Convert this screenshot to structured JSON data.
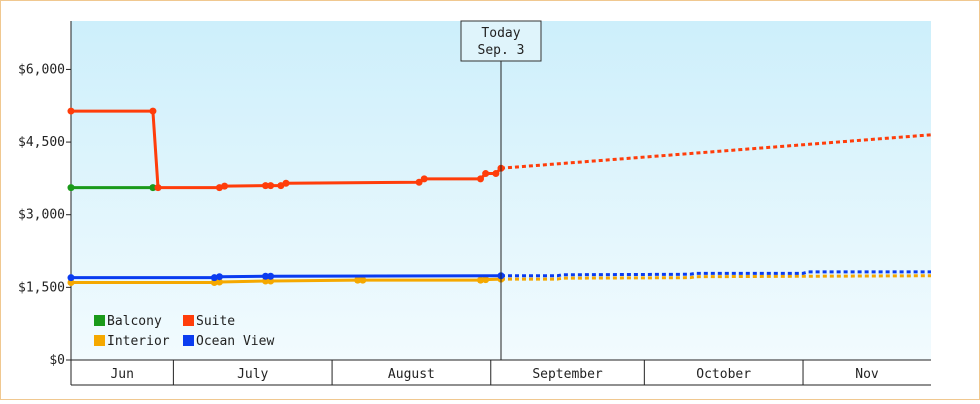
{
  "chart_data": {
    "type": "line",
    "title": "",
    "xlabel": "",
    "ylabel": "",
    "ylim": [
      0,
      7000
    ],
    "xlim": [
      "2014-06-11",
      "2014-11-26"
    ],
    "yticks": [
      {
        "value": 0,
        "label": "$0"
      },
      {
        "value": 1500,
        "label": "$1,500"
      },
      {
        "value": 3000,
        "label": "$3,000"
      },
      {
        "value": 4500,
        "label": "$4,500"
      },
      {
        "value": 6000,
        "label": "$6,000"
      }
    ],
    "months": [
      {
        "label": "Jun",
        "start": "2014-06-11",
        "end": "2014-07-01"
      },
      {
        "label": "July",
        "start": "2014-07-01",
        "end": "2014-08-01"
      },
      {
        "label": "August",
        "start": "2014-08-01",
        "end": "2014-09-01"
      },
      {
        "label": "September",
        "start": "2014-09-01",
        "end": "2014-10-01"
      },
      {
        "label": "October",
        "start": "2014-10-01",
        "end": "2014-11-01"
      },
      {
        "label": "Nov",
        "start": "2014-11-01",
        "end": "2014-11-26"
      }
    ],
    "today": {
      "date": "2014-09-03",
      "line1": "Today",
      "line2": "Sep. 3"
    },
    "grid": false,
    "legend_position": "bottom-left",
    "series": [
      {
        "name": "Balcony",
        "color": "#1a9a1a",
        "history": [
          {
            "x": "2014-06-11",
            "y": 3560
          },
          {
            "x": "2014-06-27",
            "y": 3560
          }
        ],
        "forecast": []
      },
      {
        "name": "Suite",
        "color": "#ff3d0a",
        "history": [
          {
            "x": "2014-06-11",
            "y": 5140
          },
          {
            "x": "2014-06-27",
            "y": 5140
          },
          {
            "x": "2014-06-28",
            "y": 3560
          },
          {
            "x": "2014-07-10",
            "y": 3560
          },
          {
            "x": "2014-07-11",
            "y": 3590
          },
          {
            "x": "2014-07-19",
            "y": 3600
          },
          {
            "x": "2014-07-20",
            "y": 3600
          },
          {
            "x": "2014-07-22",
            "y": 3600
          },
          {
            "x": "2014-07-23",
            "y": 3650
          },
          {
            "x": "2014-08-18",
            "y": 3670
          },
          {
            "x": "2014-08-19",
            "y": 3740
          },
          {
            "x": "2014-08-30",
            "y": 3740
          },
          {
            "x": "2014-08-31",
            "y": 3850
          },
          {
            "x": "2014-09-02",
            "y": 3850
          },
          {
            "x": "2014-09-03",
            "y": 3960
          }
        ],
        "forecast": [
          {
            "x": "2014-09-03",
            "y": 3960
          },
          {
            "x": "2014-11-26",
            "y": 4650
          }
        ]
      },
      {
        "name": "Interior",
        "color": "#f5a800",
        "history": [
          {
            "x": "2014-06-11",
            "y": 1600
          },
          {
            "x": "2014-07-09",
            "y": 1600
          },
          {
            "x": "2014-07-10",
            "y": 1610
          },
          {
            "x": "2014-07-19",
            "y": 1630
          },
          {
            "x": "2014-07-20",
            "y": 1630
          },
          {
            "x": "2014-08-06",
            "y": 1650
          },
          {
            "x": "2014-08-07",
            "y": 1650
          },
          {
            "x": "2014-08-30",
            "y": 1650
          },
          {
            "x": "2014-08-31",
            "y": 1660
          },
          {
            "x": "2014-09-03",
            "y": 1670
          }
        ],
        "forecast": [
          {
            "x": "2014-09-03",
            "y": 1670
          },
          {
            "x": "2014-09-14",
            "y": 1670
          },
          {
            "x": "2014-09-15",
            "y": 1690
          },
          {
            "x": "2014-10-10",
            "y": 1700
          },
          {
            "x": "2014-10-11",
            "y": 1720
          },
          {
            "x": "2014-11-26",
            "y": 1740
          }
        ]
      },
      {
        "name": "Ocean View",
        "color": "#0a3cf0",
        "history": [
          {
            "x": "2014-06-11",
            "y": 1700
          },
          {
            "x": "2014-07-09",
            "y": 1700
          },
          {
            "x": "2014-07-10",
            "y": 1720
          },
          {
            "x": "2014-07-19",
            "y": 1730
          },
          {
            "x": "2014-07-20",
            "y": 1730
          },
          {
            "x": "2014-09-03",
            "y": 1740
          }
        ],
        "forecast": [
          {
            "x": "2014-09-03",
            "y": 1740
          },
          {
            "x": "2014-09-14",
            "y": 1740
          },
          {
            "x": "2014-09-15",
            "y": 1760
          },
          {
            "x": "2014-10-10",
            "y": 1770
          },
          {
            "x": "2014-10-11",
            "y": 1790
          },
          {
            "x": "2014-11-01",
            "y": 1790
          },
          {
            "x": "2014-11-02",
            "y": 1820
          },
          {
            "x": "2014-11-26",
            "y": 1820
          }
        ]
      }
    ]
  }
}
